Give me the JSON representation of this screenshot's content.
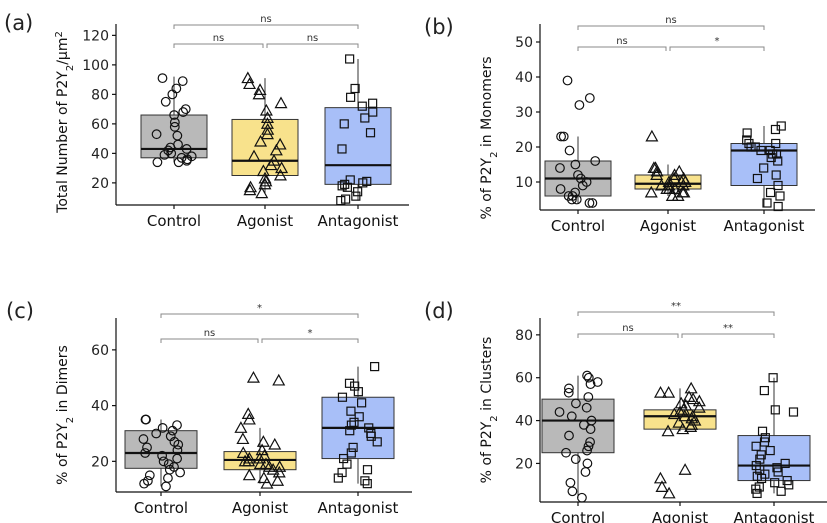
{
  "colors": {
    "Control": "#b9b9b9",
    "Agonist": "#f8e28c",
    "Antagonist": "#a8bff8",
    "axis": "#111111",
    "bracket": "#888888"
  },
  "chart_data": [
    {
      "type": "box",
      "panel_label": "(a)",
      "ylabel_main": "Total Number of P2Y",
      "ylabel_sub": "2",
      "ylabel_tail": "/µm",
      "ylabel_sup": "2",
      "ylim": [
        5,
        125
      ],
      "yticks": [
        20,
        40,
        60,
        80,
        100,
        120
      ],
      "categories": [
        "Control",
        "Agonist",
        "Antagonist"
      ],
      "series": [
        {
          "category": "Control",
          "marker": "circle",
          "box": {
            "q1": 37,
            "median": 43,
            "q3": 66,
            "whisker_low": 34,
            "whisker_high": 92
          },
          "points": [
            91,
            89,
            84,
            80,
            75,
            70,
            68,
            66,
            61,
            58,
            53,
            52,
            46,
            44,
            43,
            42,
            40,
            39,
            38,
            37,
            36,
            35,
            34,
            34
          ]
        },
        {
          "category": "Agonist",
          "marker": "triangle",
          "box": {
            "q1": 25,
            "median": 35,
            "q3": 63,
            "whisker_low": 13,
            "whisker_high": 91
          },
          "points": [
            91,
            87,
            83,
            80,
            74,
            69,
            64,
            60,
            56,
            53,
            48,
            46,
            42,
            38,
            35,
            32,
            30,
            28,
            25,
            23,
            21,
            19,
            17,
            15,
            13
          ]
        },
        {
          "category": "Antagonist",
          "marker": "square",
          "box": {
            "q1": 19,
            "median": 32,
            "q3": 71,
            "whisker_low": 8,
            "whisker_high": 104
          },
          "points": [
            104,
            84,
            78,
            74,
            72,
            68,
            64,
            60,
            54,
            43,
            22,
            21,
            20,
            19,
            18,
            17,
            14,
            11,
            9,
            8
          ]
        }
      ],
      "brackets": [
        {
          "from": "Control",
          "to": "Agonist",
          "label": "ns"
        },
        {
          "from": "Agonist",
          "to": "Antagonist",
          "label": "ns"
        },
        {
          "from": "Control",
          "to": "Antagonist",
          "label": "ns"
        }
      ]
    },
    {
      "type": "box",
      "panel_label": "(b)",
      "ylabel_main": "% of P2Y",
      "ylabel_sub": "2",
      "ylabel_tail": "  in Monomers",
      "ylabel_sup": "",
      "ylim": [
        2,
        54
      ],
      "yticks": [
        10,
        20,
        30,
        40,
        50
      ],
      "categories": [
        "Control",
        "Agonist",
        "Antagonist"
      ],
      "series": [
        {
          "category": "Control",
          "marker": "circle",
          "box": {
            "q1": 6,
            "median": 11,
            "q3": 16,
            "whisker_low": 4,
            "whisker_high": 23
          },
          "points": [
            39,
            34,
            32,
            23,
            23,
            19,
            16,
            15,
            14,
            12,
            11,
            10,
            9,
            8,
            7,
            6,
            6,
            5,
            5,
            4,
            4
          ]
        },
        {
          "category": "Agonist",
          "marker": "triangle",
          "box": {
            "q1": 8,
            "median": 9.5,
            "q3": 12,
            "whisker_low": 6,
            "whisker_high": 15
          },
          "points": [
            23,
            14,
            14,
            13,
            13,
            12,
            12,
            11,
            11,
            10,
            10,
            10,
            9,
            9,
            9,
            8,
            8,
            8,
            7,
            7,
            7,
            6,
            6
          ]
        },
        {
          "category": "Antagonist",
          "marker": "square",
          "box": {
            "q1": 9,
            "median": 19,
            "q3": 21,
            "whisker_low": 3,
            "whisker_high": 26
          },
          "points": [
            26,
            25,
            24,
            22,
            21,
            21,
            20,
            20,
            19,
            19,
            18,
            18,
            17,
            16,
            14,
            12,
            11,
            9,
            7,
            6,
            4,
            3
          ]
        }
      ],
      "brackets": [
        {
          "from": "Control",
          "to": "Agonist",
          "label": "ns"
        },
        {
          "from": "Agonist",
          "to": "Antagonist",
          "label": "*"
        },
        {
          "from": "Control",
          "to": "Antagonist",
          "label": "ns"
        }
      ]
    },
    {
      "type": "box",
      "panel_label": "(c)",
      "ylabel_main": "% of P2Y",
      "ylabel_sub": "2",
      "ylabel_tail": "  in Dimers",
      "ylabel_sup": "",
      "ylim": [
        9,
        70
      ],
      "yticks": [
        20,
        40,
        60
      ],
      "categories": [
        "Control",
        "Agonist",
        "Antagonist"
      ],
      "series": [
        {
          "category": "Control",
          "marker": "circle",
          "box": {
            "q1": 17.5,
            "median": 23,
            "q3": 31,
            "whisker_low": 11,
            "whisker_high": 35
          },
          "points": [
            35,
            35,
            33,
            32,
            31,
            30,
            29,
            28,
            27,
            26,
            25,
            24,
            23,
            22,
            21,
            20,
            19,
            18,
            17,
            16,
            15,
            14,
            13,
            12,
            11
          ]
        },
        {
          "category": "Agonist",
          "marker": "triangle",
          "box": {
            "q1": 17,
            "median": 20.5,
            "q3": 23.5,
            "whisker_low": 12,
            "whisker_high": 32
          },
          "points": [
            50,
            49,
            37,
            35,
            32,
            28,
            27,
            26,
            24,
            23,
            22,
            21,
            21,
            20,
            20,
            19,
            19,
            18,
            18,
            17,
            16,
            15,
            14,
            13,
            12
          ]
        },
        {
          "category": "Antagonist",
          "marker": "square",
          "box": {
            "q1": 21,
            "median": 32,
            "q3": 43,
            "whisker_low": 12,
            "whisker_high": 54
          },
          "points": [
            54,
            48,
            47,
            45,
            43,
            41,
            38,
            36,
            34,
            33,
            32,
            31,
            30,
            29,
            27,
            25,
            23,
            21,
            19,
            17,
            16,
            14,
            13,
            12
          ]
        }
      ],
      "brackets": [
        {
          "from": "Control",
          "to": "Agonist",
          "label": "ns"
        },
        {
          "from": "Agonist",
          "to": "Antagonist",
          "label": "*"
        },
        {
          "from": "Control",
          "to": "Antagonist",
          "label": "*"
        }
      ]
    },
    {
      "type": "box",
      "panel_label": "(d)",
      "ylabel_main": "% of P2Y",
      "ylabel_sub": "2",
      "ylabel_tail": "  in Clusters",
      "ylabel_sup": "",
      "ylim": [
        2,
        86
      ],
      "yticks": [
        20,
        40,
        60,
        80
      ],
      "categories": [
        "Control",
        "Agonist",
        "Antagonist"
      ],
      "series": [
        {
          "category": "Control",
          "marker": "circle",
          "box": {
            "q1": 25,
            "median": 40,
            "q3": 50,
            "whisker_low": 4,
            "whisker_high": 61
          },
          "points": [
            61,
            60,
            58,
            57,
            55,
            53,
            51,
            48,
            46,
            44,
            42,
            40,
            38,
            36,
            33,
            30,
            28,
            26,
            25,
            22,
            20,
            16,
            11,
            7,
            4
          ]
        },
        {
          "category": "Agonist",
          "marker": "triangle",
          "box": {
            "q1": 36,
            "median": 42,
            "q3": 45,
            "whisker_low": 35,
            "whisker_high": 55
          },
          "points": [
            55,
            53,
            53,
            51,
            50,
            49,
            48,
            47,
            46,
            45,
            44,
            43,
            42,
            42,
            41,
            40,
            39,
            38,
            37,
            36,
            35,
            17,
            13,
            9,
            6
          ]
        },
        {
          "category": "Antagonist",
          "marker": "square",
          "box": {
            "q1": 12,
            "median": 19,
            "q3": 33,
            "whisker_low": 6,
            "whisker_high": 60
          },
          "points": [
            60,
            54,
            45,
            44,
            35,
            32,
            30,
            28,
            26,
            24,
            22,
            20,
            19,
            18,
            17,
            16,
            15,
            14,
            13,
            12,
            11,
            10,
            9,
            8,
            7,
            6
          ]
        }
      ],
      "brackets": [
        {
          "from": "Control",
          "to": "Agonist",
          "label": "ns"
        },
        {
          "from": "Agonist",
          "to": "Antagonist",
          "label": "**"
        },
        {
          "from": "Control",
          "to": "Antagonist",
          "label": "**"
        }
      ]
    }
  ]
}
